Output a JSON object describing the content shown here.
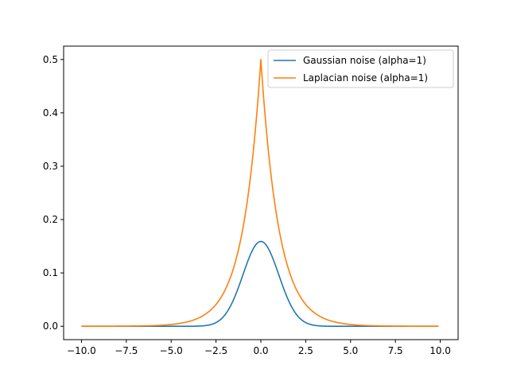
{
  "chart_data": {
    "type": "line",
    "title": "",
    "xlabel": "",
    "ylabel": "",
    "xlim": [
      -10.995,
      10.995
    ],
    "ylim": [
      -0.025,
      0.525
    ],
    "grid": false,
    "legend_position": "top-right",
    "x_ticks": [
      -10.0,
      -7.5,
      -5.0,
      -2.5,
      0.0,
      2.5,
      5.0,
      7.5,
      10.0
    ],
    "x_tick_labels": [
      "−10.0",
      "−7.5",
      "−5.0",
      "−2.5",
      "0.0",
      "2.5",
      "5.0",
      "7.5",
      "10.0"
    ],
    "y_ticks": [
      0.0,
      0.1,
      0.2,
      0.3,
      0.4,
      0.5
    ],
    "y_tick_labels": [
      "0.0",
      "0.1",
      "0.2",
      "0.3",
      "0.4",
      "0.5"
    ],
    "x_range": [
      -10.0,
      9.9
    ],
    "series": [
      {
        "name": "Gaussian noise (alpha=1)",
        "color": "#1f77b4",
        "x": [
          -10,
          -5,
          -4,
          -3,
          -2.5,
          -2,
          -1.5,
          -1,
          -0.5,
          0,
          0.5,
          1,
          1.5,
          2,
          2.5,
          3,
          4,
          5,
          9.9
        ],
        "y": [
          0.0,
          0.0,
          0.0002,
          0.0022,
          0.0066,
          0.0176,
          0.0383,
          0.0717,
          0.1083,
          0.159,
          0.1083,
          0.0717,
          0.0383,
          0.0176,
          0.0066,
          0.0022,
          0.0002,
          0.0,
          0.0
        ]
      },
      {
        "name": "Laplacian noise (alpha=1)",
        "color": "#ff7f0e",
        "x": [
          -10,
          -7.5,
          -5,
          -4,
          -3,
          -2.5,
          -2,
          -1.5,
          -1,
          -0.5,
          0,
          0.5,
          1,
          1.5,
          2,
          2.5,
          3,
          4,
          5,
          7.5,
          9.9
        ],
        "y": [
          0.0,
          0.0003,
          0.0034,
          0.0092,
          0.0249,
          0.041,
          0.0677,
          0.1116,
          0.1839,
          0.3033,
          0.5,
          0.3033,
          0.1839,
          0.1116,
          0.0677,
          0.041,
          0.0249,
          0.0092,
          0.0034,
          0.0003,
          0.0
        ]
      }
    ]
  }
}
